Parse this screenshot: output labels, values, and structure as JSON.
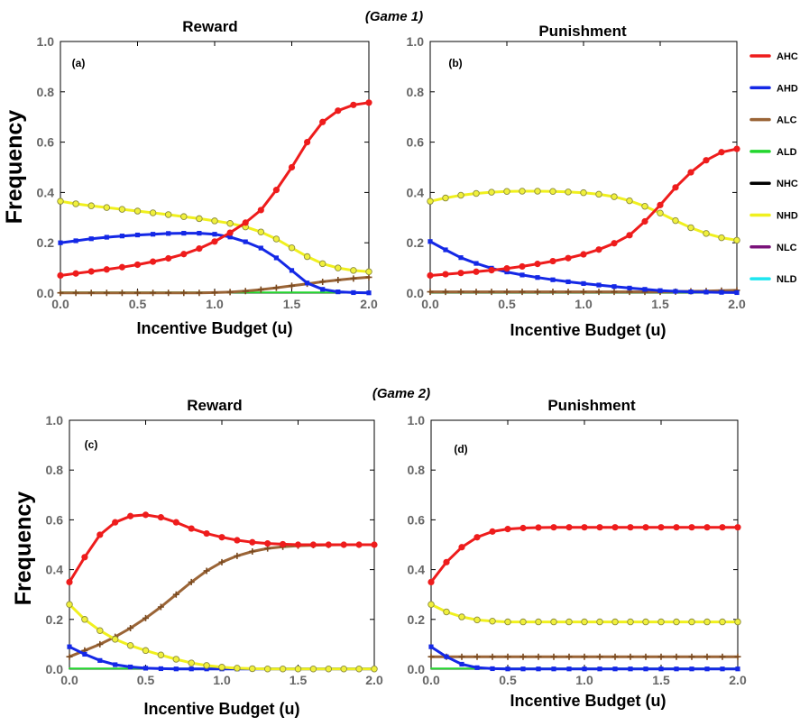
{
  "figure": {
    "game1_label": "(Game 1)",
    "game2_label": "(Game 2)"
  },
  "legend": [
    {
      "key": "AHC",
      "label": "AHC",
      "color": "#ee1c1c"
    },
    {
      "key": "AHD",
      "label": "AHD",
      "color": "#1428e6"
    },
    {
      "key": "ALC",
      "label": "ALC",
      "color": "#9a6436"
    },
    {
      "key": "ALD",
      "label": "ALD",
      "color": "#22d62e"
    },
    {
      "key": "NHC",
      "label": "NHC",
      "color": "#000000"
    },
    {
      "key": "NHD",
      "label": "NHD",
      "color": "#f0f01e"
    },
    {
      "key": "NLC",
      "label": "NLC",
      "color": "#7a127a"
    },
    {
      "key": "NLD",
      "label": "NLD",
      "color": "#1ee6f0"
    }
  ],
  "chart_data": [
    {
      "type": "line",
      "id": "a",
      "panel_label": "(a)",
      "game": "Game 1",
      "title": "Reward",
      "xlabel": "Incentive Budget (u)",
      "ylabel": "Frequency",
      "xlim": [
        0,
        2
      ],
      "ylim": [
        0,
        1
      ],
      "xticks": [
        "0.0",
        "0.5",
        "1.0",
        "1.5",
        "2.0"
      ],
      "yticks": [
        "0.0",
        "0.2",
        "0.4",
        "0.6",
        "0.8",
        "1.0"
      ],
      "x": [
        0,
        0.1,
        0.2,
        0.3,
        0.4,
        0.5,
        0.6,
        0.7,
        0.8,
        0.9,
        1.0,
        1.1,
        1.2,
        1.3,
        1.4,
        1.5,
        1.6,
        1.7,
        1.8,
        1.9,
        2.0
      ],
      "series": [
        {
          "name": "NHD",
          "marker": "circle",
          "values": [
            0.365,
            0.355,
            0.347,
            0.34,
            0.333,
            0.326,
            0.319,
            0.312,
            0.304,
            0.296,
            0.287,
            0.277,
            0.263,
            0.243,
            0.215,
            0.18,
            0.145,
            0.117,
            0.1,
            0.09,
            0.085
          ]
        },
        {
          "name": "AHD",
          "marker": "square",
          "values": [
            0.2,
            0.208,
            0.216,
            0.222,
            0.227,
            0.231,
            0.234,
            0.237,
            0.238,
            0.238,
            0.234,
            0.223,
            0.204,
            0.179,
            0.14,
            0.09,
            0.04,
            0.015,
            0.005,
            0.002,
            0.001
          ]
        },
        {
          "name": "AHC",
          "marker": "circle",
          "values": [
            0.07,
            0.078,
            0.086,
            0.094,
            0.103,
            0.113,
            0.125,
            0.138,
            0.155,
            0.177,
            0.205,
            0.24,
            0.28,
            0.33,
            0.41,
            0.5,
            0.6,
            0.68,
            0.725,
            0.748,
            0.757
          ]
        },
        {
          "name": "ALC",
          "marker": "plus",
          "values": [
            0.001,
            0.001,
            0.001,
            0.001,
            0.001,
            0.001,
            0.001,
            0.001,
            0.001,
            0.001,
            0.002,
            0.004,
            0.008,
            0.014,
            0.021,
            0.029,
            0.037,
            0.045,
            0.052,
            0.058,
            0.063
          ]
        },
        {
          "name": "ALD",
          "marker": "none",
          "values": [
            0.003,
            0.003,
            0.003,
            0.003,
            0.003,
            0.003,
            0.003,
            0.003,
            0.003,
            0.003,
            0.003,
            0.003,
            0.003,
            0.003,
            0.003,
            0.003,
            0.003,
            0.003,
            0.003,
            0.003,
            0.003
          ]
        }
      ]
    },
    {
      "type": "line",
      "id": "b",
      "panel_label": "(b)",
      "game": "Game 1",
      "title": "Punishment",
      "xlabel": "Incentive Budget (u)",
      "ylabel": "",
      "xlim": [
        0,
        2
      ],
      "ylim": [
        0,
        1
      ],
      "xticks": [
        "0.0",
        "0.5",
        "1.0",
        "1.5",
        "2.0"
      ],
      "yticks": [
        "0.0",
        "0.2",
        "0.4",
        "0.6",
        "0.8",
        "1.0"
      ],
      "x": [
        0,
        0.1,
        0.2,
        0.3,
        0.4,
        0.5,
        0.6,
        0.7,
        0.8,
        0.9,
        1.0,
        1.1,
        1.2,
        1.3,
        1.4,
        1.5,
        1.6,
        1.7,
        1.8,
        1.9,
        2.0
      ],
      "series": [
        {
          "name": "NHD",
          "marker": "circle",
          "values": [
            0.365,
            0.378,
            0.389,
            0.396,
            0.401,
            0.404,
            0.405,
            0.405,
            0.404,
            0.402,
            0.399,
            0.393,
            0.383,
            0.367,
            0.345,
            0.318,
            0.288,
            0.26,
            0.237,
            0.22,
            0.21
          ]
        },
        {
          "name": "AHD",
          "marker": "square",
          "values": [
            0.205,
            0.172,
            0.141,
            0.118,
            0.099,
            0.084,
            0.072,
            0.062,
            0.053,
            0.045,
            0.038,
            0.032,
            0.026,
            0.02,
            0.015,
            0.01,
            0.007,
            0.005,
            0.004,
            0.003,
            0.002
          ]
        },
        {
          "name": "AHC",
          "marker": "circle",
          "values": [
            0.07,
            0.075,
            0.08,
            0.085,
            0.091,
            0.098,
            0.106,
            0.116,
            0.127,
            0.139,
            0.154,
            0.173,
            0.198,
            0.23,
            0.285,
            0.35,
            0.42,
            0.48,
            0.528,
            0.56,
            0.573
          ]
        },
        {
          "name": "ALC",
          "marker": "plus",
          "values": [
            0.005,
            0.005,
            0.005,
            0.005,
            0.005,
            0.005,
            0.005,
            0.005,
            0.005,
            0.005,
            0.005,
            0.005,
            0.005,
            0.005,
            0.005,
            0.005,
            0.006,
            0.007,
            0.008,
            0.01,
            0.011
          ]
        },
        {
          "name": "ALD",
          "marker": "none",
          "values": [
            0.003,
            0.003,
            0.003,
            0.003,
            0.003,
            0.003,
            0.003,
            0.003,
            0.003,
            0.003,
            0.003,
            0.003,
            0.003,
            0.003,
            0.003,
            0.003,
            0.003,
            0.003,
            0.003,
            0.003,
            0.003
          ]
        }
      ]
    },
    {
      "type": "line",
      "id": "c",
      "panel_label": "(c)",
      "game": "Game 2",
      "title": "Reward",
      "xlabel": "Incentive Budget (u)",
      "ylabel": "Frequency",
      "xlim": [
        0,
        2
      ],
      "ylim": [
        0,
        1
      ],
      "xticks": [
        "0.0",
        "0.5",
        "1.0",
        "1.5",
        "2.0"
      ],
      "yticks": [
        "0.0",
        "0.2",
        "0.4",
        "0.6",
        "0.8",
        "1.0"
      ],
      "x": [
        0,
        0.1,
        0.2,
        0.3,
        0.4,
        0.5,
        0.6,
        0.7,
        0.8,
        0.9,
        1.0,
        1.1,
        1.2,
        1.3,
        1.4,
        1.5,
        1.6,
        1.7,
        1.8,
        1.9,
        2.0
      ],
      "series": [
        {
          "name": "NHD",
          "marker": "circle",
          "values": [
            0.26,
            0.2,
            0.155,
            0.12,
            0.095,
            0.075,
            0.057,
            0.04,
            0.025,
            0.015,
            0.008,
            0.004,
            0.002,
            0.001,
            0.001,
            0.001,
            0.001,
            0.001,
            0.001,
            0.001,
            0.001
          ]
        },
        {
          "name": "AHD",
          "marker": "square",
          "values": [
            0.09,
            0.06,
            0.035,
            0.018,
            0.009,
            0.004,
            0.002,
            0.001,
            0.001,
            0.001,
            0.001,
            0.001,
            0.001,
            0.001,
            0.001,
            0.001,
            0.001,
            0.001,
            0.001,
            0.001,
            0.001
          ]
        },
        {
          "name": "AHC",
          "marker": "circle",
          "values": [
            0.35,
            0.45,
            0.54,
            0.59,
            0.615,
            0.62,
            0.61,
            0.59,
            0.565,
            0.545,
            0.53,
            0.518,
            0.51,
            0.505,
            0.502,
            0.5,
            0.5,
            0.5,
            0.5,
            0.5,
            0.5
          ]
        },
        {
          "name": "ALC",
          "marker": "plus",
          "values": [
            0.05,
            0.075,
            0.1,
            0.13,
            0.165,
            0.205,
            0.25,
            0.3,
            0.35,
            0.395,
            0.43,
            0.455,
            0.473,
            0.485,
            0.492,
            0.496,
            0.498,
            0.499,
            0.5,
            0.5,
            0.5
          ]
        },
        {
          "name": "ALD",
          "marker": "none",
          "values": [
            0.003,
            0.003,
            0.003,
            0.003,
            0.003,
            0.003,
            0.003,
            0.003,
            0.003,
            0.003,
            0.003,
            0.003,
            0.003,
            0.003,
            0.003,
            0.003,
            0.003,
            0.003,
            0.003,
            0.003,
            0.003
          ]
        }
      ]
    },
    {
      "type": "line",
      "id": "d",
      "panel_label": "(d)",
      "game": "Game 2",
      "title": "Punishment",
      "xlabel": "Incentive Budget (u)",
      "ylabel": "",
      "xlim": [
        0,
        2
      ],
      "ylim": [
        0,
        1
      ],
      "xticks": [
        "0.0",
        "0.5",
        "1.0",
        "1.5",
        "2.0"
      ],
      "yticks": [
        "0.0",
        "0.2",
        "0.4",
        "0.6",
        "0.8",
        "1.0"
      ],
      "x": [
        0,
        0.1,
        0.2,
        0.3,
        0.4,
        0.5,
        0.6,
        0.7,
        0.8,
        0.9,
        1.0,
        1.1,
        1.2,
        1.3,
        1.4,
        1.5,
        1.6,
        1.7,
        1.8,
        1.9,
        2.0
      ],
      "series": [
        {
          "name": "NHD",
          "marker": "circle",
          "values": [
            0.26,
            0.23,
            0.21,
            0.198,
            0.193,
            0.19,
            0.19,
            0.19,
            0.19,
            0.19,
            0.19,
            0.19,
            0.19,
            0.19,
            0.19,
            0.19,
            0.19,
            0.19,
            0.19,
            0.19,
            0.19
          ]
        },
        {
          "name": "AHD",
          "marker": "square",
          "values": [
            0.09,
            0.05,
            0.02,
            0.006,
            0.002,
            0.001,
            0.001,
            0.001,
            0.001,
            0.001,
            0.001,
            0.001,
            0.001,
            0.001,
            0.001,
            0.001,
            0.001,
            0.001,
            0.001,
            0.001,
            0.001
          ]
        },
        {
          "name": "AHC",
          "marker": "circle",
          "values": [
            0.35,
            0.43,
            0.49,
            0.53,
            0.553,
            0.563,
            0.567,
            0.569,
            0.57,
            0.57,
            0.57,
            0.57,
            0.57,
            0.57,
            0.57,
            0.57,
            0.57,
            0.57,
            0.57,
            0.57,
            0.57
          ]
        },
        {
          "name": "ALC",
          "marker": "plus",
          "values": [
            0.05,
            0.05,
            0.05,
            0.05,
            0.05,
            0.05,
            0.05,
            0.05,
            0.05,
            0.05,
            0.05,
            0.05,
            0.05,
            0.05,
            0.05,
            0.05,
            0.05,
            0.05,
            0.05,
            0.05,
            0.05
          ]
        },
        {
          "name": "ALD",
          "marker": "none",
          "values": [
            0.003,
            0.003,
            0.003,
            0.003,
            0.003,
            0.003,
            0.003,
            0.003,
            0.003,
            0.003,
            0.003,
            0.003,
            0.003,
            0.003,
            0.003,
            0.003,
            0.003,
            0.003,
            0.003,
            0.003,
            0.003
          ]
        }
      ]
    }
  ]
}
